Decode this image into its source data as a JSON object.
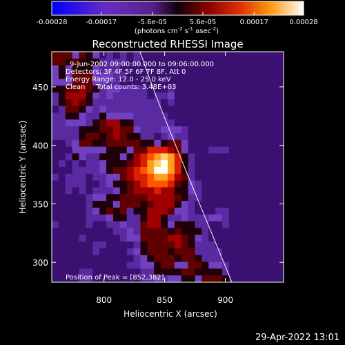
{
  "colorbar": {
    "ticks": [
      "-0.00028",
      "-0.00017",
      "-5.6e-05",
      "5.6e-05",
      "0.00017",
      "0.00028"
    ],
    "unit_parts": [
      "(photons cm",
      "-2",
      " s",
      "-1",
      " asec",
      "-2",
      ")"
    ]
  },
  "chart_data": {
    "type": "heatmap",
    "title": "Reconstructed RHESSI Image",
    "xlabel": "Heliocentric X (arcsec)",
    "ylabel": "Heliocentric Y (arcsec)",
    "xlim": [
      757,
      948
    ],
    "ylim": [
      283,
      480
    ],
    "xticks": [
      800,
      850,
      900
    ],
    "yticks": [
      300,
      350,
      400,
      450
    ],
    "color_range": [
      -0.00028,
      0.00028
    ],
    "peak_position": [
      852,
      382
    ],
    "annotations": {
      "time_range": "9-Jun-2002 09:00:00.000 to 09:06:00.000",
      "detectors": "Detectors: 3F 4F 5F 6F 7F 8F, Att 0",
      "energy": "Energy Range: 12.0 - 25.0 keV",
      "clean": "Clean     Total counts: 3.48E+03",
      "peak": "Position of Peak = [852,382]"
    }
  },
  "timestamp": "29-Apr-2022 13:01"
}
